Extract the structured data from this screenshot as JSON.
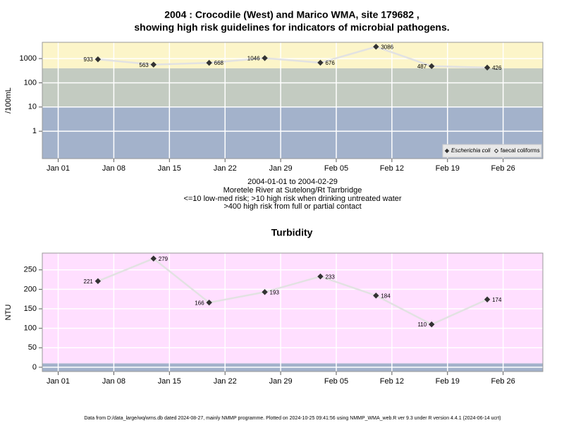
{
  "chart_data": [
    {
      "type": "line",
      "title": "2004 : Crocodile (West) and Marico WMA, site 179682 ,",
      "subtitle": "showing high risk guidelines for indicators of microbial pathogens.",
      "y_label": "/100mL",
      "notes": [
        "2004-01-01 to 2004-02-29",
        "Moretele River at Sutelong/Rt Tarrbridge",
        "<=10 low-med risk; >10 high risk when drinking untreated water",
        ">400 high risk from full or partial contact"
      ],
      "x": [
        "2004-01-06",
        "2004-01-13",
        "2004-01-20",
        "2004-01-27",
        "2004-02-03",
        "2004-02-10",
        "2004-02-17",
        "2004-02-24"
      ],
      "series": [
        {
          "name": "Escherichia coli",
          "color": "#333333",
          "line_color": "#e2e2e2",
          "filled": true,
          "values": [
            933,
            563,
            668,
            1046,
            676,
            3086,
            487,
            426
          ]
        },
        {
          "name": "faecal coliforms",
          "color": "#333333",
          "line_color": "#e2e2e2",
          "filled": false,
          "values": [
            null,
            null,
            null,
            null,
            null,
            null,
            null,
            null
          ]
        }
      ],
      "log_scale": true,
      "ylim": [
        0.074,
        4700
      ],
      "yticks": [
        1,
        10,
        100,
        1000
      ],
      "xlim": [
        "2003-12-30",
        "2004-03-02"
      ],
      "xticks": [
        {
          "value": "2004-01-01",
          "label": "Jan 01"
        },
        {
          "value": "2004-01-08",
          "label": "Jan 08"
        },
        {
          "value": "2004-01-15",
          "label": "Jan 15"
        },
        {
          "value": "2004-01-22",
          "label": "Jan 22"
        },
        {
          "value": "2004-01-29",
          "label": "Jan 29"
        },
        {
          "value": "2004-02-05",
          "label": "Feb 05"
        },
        {
          "value": "2004-02-12",
          "label": "Feb 12"
        },
        {
          "value": "2004-02-19",
          "label": "Feb 19"
        },
        {
          "value": "2004-02-26",
          "label": "Feb 26"
        }
      ],
      "thresholds": [
        10,
        400
      ],
      "band_colors": [
        "#a3b2cb",
        "#c3cbc1",
        "#fcf5c9"
      ],
      "grid": true,
      "legend": "bottom-right"
    },
    {
      "type": "line",
      "title": "Turbidity",
      "y_label": "NTU",
      "x": [
        "2004-01-06",
        "2004-01-13",
        "2004-01-20",
        "2004-01-27",
        "2004-02-03",
        "2004-02-10",
        "2004-02-17",
        "2004-02-24"
      ],
      "series": [
        {
          "color": "#333333",
          "line_color": "#e2e2e2",
          "filled": true,
          "values": [
            221,
            279,
            166,
            193,
            233,
            184,
            110,
            174
          ]
        }
      ],
      "log_scale": false,
      "ylim": [
        -11,
        293
      ],
      "yticks": [
        0,
        50,
        100,
        150,
        200,
        250
      ],
      "xlim": [
        "2003-12-30",
        "2004-03-02"
      ],
      "xticks": [
        {
          "value": "2004-01-01",
          "label": "Jan 01"
        },
        {
          "value": "2004-01-08",
          "label": "Jan 08"
        },
        {
          "value": "2004-01-15",
          "label": "Jan 15"
        },
        {
          "value": "2004-01-22",
          "label": "Jan 22"
        },
        {
          "value": "2004-01-29",
          "label": "Jan 29"
        },
        {
          "value": "2004-02-05",
          "label": "Feb 05"
        },
        {
          "value": "2004-02-12",
          "label": "Feb 12"
        },
        {
          "value": "2004-02-19",
          "label": "Feb 19"
        },
        {
          "value": "2004-02-26",
          "label": "Feb 26"
        }
      ],
      "thresholds": [
        10
      ],
      "band_colors": [
        "#a3b2cb",
        "#ffdfff"
      ],
      "grid": true
    }
  ],
  "footer": "Data from D:/data_large/wq/wms.db dated 2024-08-27, mainly NMMP programme. Plotted on 2024-10-25 09:41:56 using NMMP_WMA_web.R ver 9.3 under R version 4.4.1 (2024-06-14 ucrt)"
}
